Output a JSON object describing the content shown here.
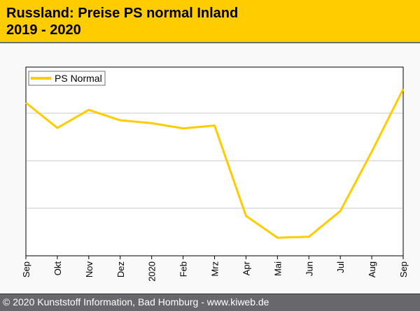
{
  "header": {
    "title_line1": "Russland: Preise PS normal Inland",
    "title_line2": "2019 - 2020"
  },
  "footer": {
    "text": "© 2020 Kunststoff Information, Bad Homburg - www.kiweb.de"
  },
  "chart_data": {
    "type": "line",
    "title": "Russland: Preise PS normal Inland 2019 - 2020",
    "xlabel": "",
    "ylabel": "",
    "categories": [
      "Sep",
      "Okt",
      "Nov",
      "Dez",
      "2020",
      "Feb",
      "Mrz",
      "Apr",
      "Mai",
      "Jun",
      "Jul",
      "Aug",
      "Sep"
    ],
    "series": [
      {
        "name": "PS Normal",
        "color": "#ffcc00",
        "values": [
          3.22,
          2.69,
          3.07,
          2.85,
          2.79,
          2.68,
          2.74,
          0.84,
          0.38,
          0.4,
          0.94,
          2.19,
          3.51
        ]
      }
    ],
    "ylim": [
      0,
      3.97
    ],
    "y_gridlines": [
      1,
      2,
      3
    ],
    "y_tick_labels": "none (relative index scale)",
    "grid": true,
    "legend": "top-left"
  }
}
